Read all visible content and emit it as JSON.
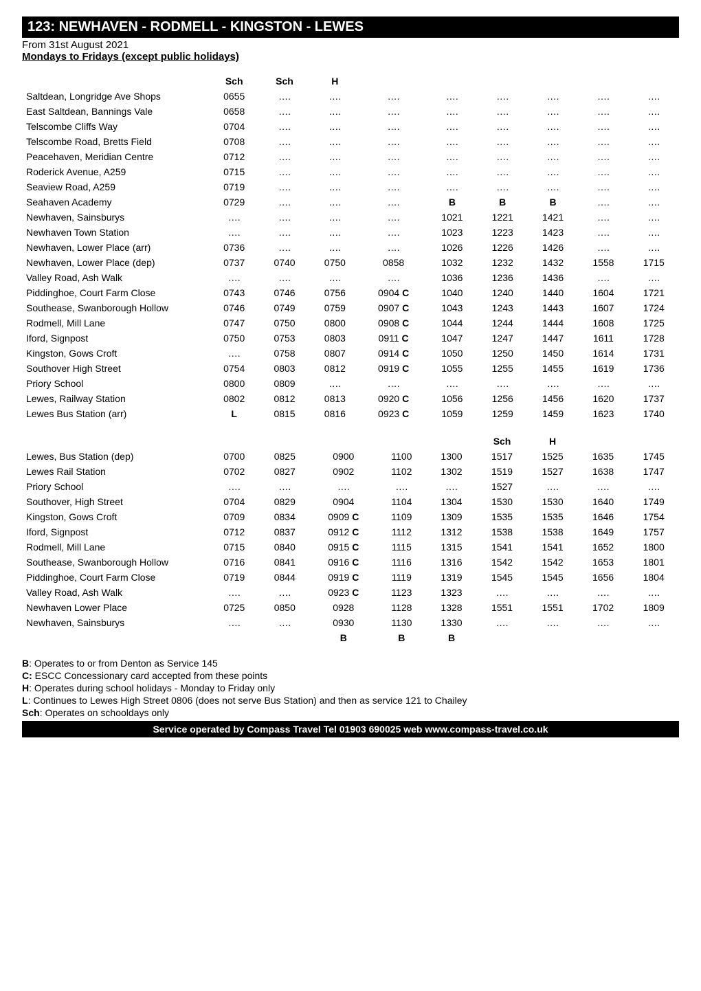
{
  "header": {
    "title": "123: NEWHAVEN - RODMELL - KINGSTON - LEWES",
    "effective": "From 31st August 2021",
    "days": "Mondays to Fridays (except public holidays)"
  },
  "table1": {
    "header": [
      "",
      "Sch",
      "Sch",
      "H",
      "",
      "",
      "",
      "",
      "",
      ""
    ],
    "rows": [
      {
        "stop": "Saltdean, Longridge Ave Shops",
        "cells": [
          "0655",
          "….",
          "….",
          "….",
          "….",
          "….",
          "….",
          "….",
          "…."
        ]
      },
      {
        "stop": "East Saltdean, Bannings Vale",
        "cells": [
          "0658",
          "….",
          "….",
          "….",
          "….",
          "….",
          "….",
          "….",
          "…."
        ]
      },
      {
        "stop": "Telscombe Cliffs Way",
        "cells": [
          "0704",
          "….",
          "….",
          "….",
          "….",
          "….",
          "….",
          "….",
          "…."
        ]
      },
      {
        "stop": "Telscombe Road, Bretts Field",
        "cells": [
          "0708",
          "….",
          "….",
          "….",
          "….",
          "….",
          "….",
          "….",
          "…."
        ]
      },
      {
        "stop": "Peacehaven, Meridian Centre",
        "cells": [
          "0712",
          "….",
          "….",
          "….",
          "….",
          "….",
          "….",
          "….",
          "…."
        ]
      },
      {
        "stop": "Roderick Avenue, A259",
        "cells": [
          "0715",
          "….",
          "….",
          "….",
          "….",
          "….",
          "….",
          "….",
          "…."
        ]
      },
      {
        "stop": "Seaview Road, A259",
        "cells": [
          "0719",
          "….",
          "….",
          "….",
          "….",
          "….",
          "….",
          "….",
          "…."
        ]
      },
      {
        "stop": "Seahaven Academy",
        "cells": [
          "0729",
          "….",
          "….",
          "….",
          "B",
          "B",
          "B",
          "….",
          "…."
        ]
      },
      {
        "stop": "Newhaven, Sainsburys",
        "cells": [
          "….",
          "….",
          "….",
          "….",
          "1021",
          "1221",
          "1421",
          "….",
          "…."
        ]
      },
      {
        "stop": "Newhaven Town Station",
        "cells": [
          "….",
          "….",
          "….",
          "….",
          "1023",
          "1223",
          "1423",
          "….",
          "…."
        ]
      },
      {
        "stop": "Newhaven, Lower Place (arr)",
        "cells": [
          "0736",
          "….",
          "….",
          "….",
          "1026",
          "1226",
          "1426",
          "….",
          "…."
        ]
      },
      {
        "stop": "Newhaven, Lower Place (dep)",
        "cells": [
          "0737",
          "0740",
          "0750",
          "0858",
          "1032",
          "1232",
          "1432",
          "1558",
          "1715"
        ]
      },
      {
        "stop": "Valley Road, Ash Walk",
        "cells": [
          "….",
          "….",
          "….",
          "….",
          "1036",
          "1236",
          "1436",
          "….",
          "…."
        ]
      },
      {
        "stop": "Piddinghoe, Court Farm Close",
        "cells": [
          "0743",
          "0746",
          "0756",
          "0904 C",
          "1040",
          "1240",
          "1440",
          "1604",
          "1721"
        ]
      },
      {
        "stop": "Southease, Swanborough Hollow",
        "cells": [
          "0746",
          "0749",
          "0759",
          "0907 C",
          "1043",
          "1243",
          "1443",
          "1607",
          "1724"
        ]
      },
      {
        "stop": "Rodmell, Mill Lane",
        "cells": [
          "0747",
          "0750",
          "0800",
          "0908 C",
          "1044",
          "1244",
          "1444",
          "1608",
          "1725"
        ]
      },
      {
        "stop": "Iford, Signpost",
        "cells": [
          "0750",
          "0753",
          "0803",
          "0911 C",
          "1047",
          "1247",
          "1447",
          "1611",
          "1728"
        ]
      },
      {
        "stop": "Kingston, Gows Croft",
        "cells": [
          "….",
          "0758",
          "0807",
          "0914 C",
          "1050",
          "1250",
          "1450",
          "1614",
          "1731"
        ]
      },
      {
        "stop": "Southover High Street",
        "cells": [
          "0754",
          "0803",
          "0812",
          "0919 C",
          "1055",
          "1255",
          "1455",
          "1619",
          "1736"
        ]
      },
      {
        "stop": "Priory School",
        "cells": [
          "0800",
          "0809",
          "….",
          "….",
          "….",
          "….",
          "….",
          "….",
          "…."
        ]
      },
      {
        "stop": "Lewes, Railway Station",
        "cells": [
          "0802",
          "0812",
          "0813",
          "0920 C",
          "1056",
          "1256",
          "1456",
          "1620",
          "1737"
        ]
      },
      {
        "stop": "Lewes Bus Station (arr)",
        "cells": [
          "L",
          "0815",
          "0816",
          "0923 C",
          "1059",
          "1259",
          "1459",
          "1623",
          "1740"
        ]
      }
    ]
  },
  "table2": {
    "header": [
      "",
      "",
      "",
      "",
      "",
      "",
      "Sch",
      "H",
      "",
      ""
    ],
    "rows": [
      {
        "stop": "Lewes, Bus Station (dep)",
        "cells": [
          "0700",
          "0825",
          "0900",
          "1100",
          "1300",
          "1517",
          "1525",
          "1635",
          "1745"
        ]
      },
      {
        "stop": "Lewes Rail Station",
        "cells": [
          "0702",
          "0827",
          "0902",
          "1102",
          "1302",
          "1519",
          "1527",
          "1638",
          "1747"
        ]
      },
      {
        "stop": "Priory School",
        "cells": [
          "….",
          "….",
          "….",
          "….",
          "….",
          "1527",
          "….",
          "….",
          "…."
        ]
      },
      {
        "stop": "Southover, High Street",
        "cells": [
          "0704",
          "0829",
          "0904",
          "1104",
          "1304",
          "1530",
          "1530",
          "1640",
          "1749"
        ]
      },
      {
        "stop": "Kingston, Gows Croft",
        "cells": [
          "0709",
          "0834",
          "0909 C",
          "1109",
          "1309",
          "1535",
          "1535",
          "1646",
          "1754"
        ]
      },
      {
        "stop": "Iford, Signpost",
        "cells": [
          "0712",
          "0837",
          "0912 C",
          "1112",
          "1312",
          "1538",
          "1538",
          "1649",
          "1757"
        ]
      },
      {
        "stop": "Rodmell, Mill Lane",
        "cells": [
          "0715",
          "0840",
          "0915 C",
          "1115",
          "1315",
          "1541",
          "1541",
          "1652",
          "1800"
        ]
      },
      {
        "stop": "Southease, Swanborough Hollow",
        "cells": [
          "0716",
          "0841",
          "0916 C",
          "1116",
          "1316",
          "1542",
          "1542",
          "1653",
          "1801"
        ]
      },
      {
        "stop": "Piddinghoe, Court Farm Close",
        "cells": [
          "0719",
          "0844",
          "0919 C",
          "1119",
          "1319",
          "1545",
          "1545",
          "1656",
          "1804"
        ]
      },
      {
        "stop": "Valley Road, Ash Walk",
        "cells": [
          "….",
          "….",
          "0923 C",
          "1123",
          "1323",
          "….",
          "….",
          "….",
          "…."
        ]
      },
      {
        "stop": "Newhaven Lower Place",
        "cells": [
          "0725",
          "0850",
          "0928",
          "1128",
          "1328",
          "1551",
          "1551",
          "1702",
          "1809"
        ]
      },
      {
        "stop": "Newhaven, Sainsburys",
        "cells": [
          "….",
          "….",
          "0930",
          "1130",
          "1330",
          "….",
          "….",
          "….",
          "…."
        ]
      },
      {
        "stop": "",
        "cells": [
          "",
          "",
          "B",
          "B",
          "B",
          "",
          "",
          "",
          ""
        ]
      }
    ]
  },
  "footnotes": [
    {
      "k": "B",
      "t": ": Operates to or from Denton as Service 145"
    },
    {
      "k": "C:",
      "t": " ESCC Concessionary card accepted from these points"
    },
    {
      "k": "H",
      "t": ": Operates during school holidays - Monday to Friday only"
    },
    {
      "k": "L",
      "t": ": Continues to Lewes High Street 0806 (does not serve Bus Station) and then as service 121 to Chailey"
    },
    {
      "k": "Sch",
      "t": ": Operates on schooldays only"
    }
  ],
  "footer": "Service operated by Compass Travel Tel 01903 690025 web www.compass-travel.co.uk"
}
